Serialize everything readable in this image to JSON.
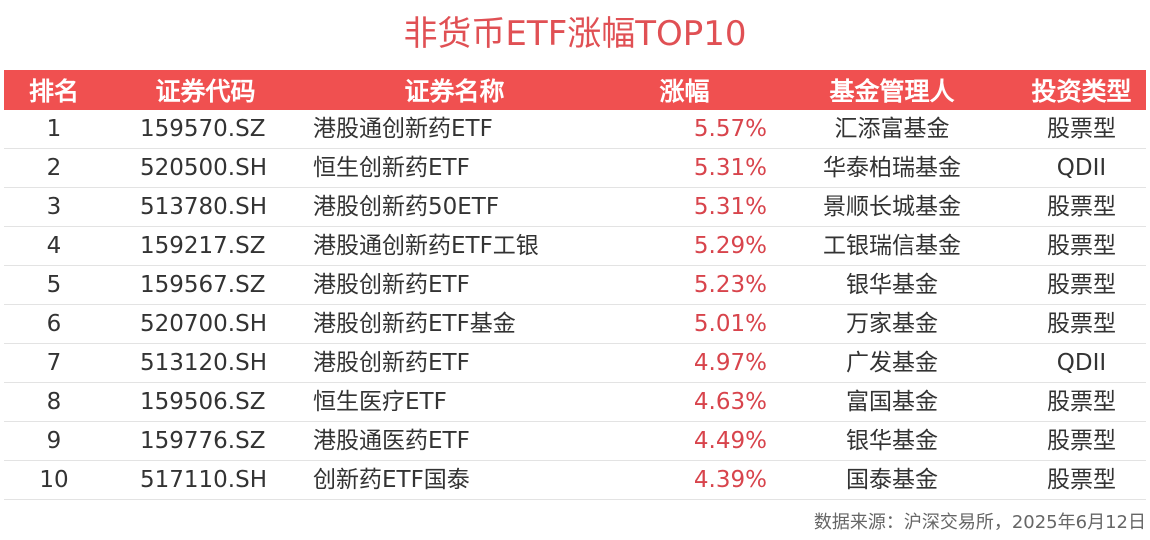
{
  "chart_data": {
    "type": "table",
    "title": "非货币ETF涨幅TOP10",
    "columns": [
      "排名",
      "证券代码",
      "证券名称",
      "涨幅",
      "基金管理人",
      "投资类型"
    ],
    "rows": [
      {
        "rank": "1",
        "code": "159570.SZ",
        "name": "港股通创新药ETF",
        "change": "5.57%",
        "manager": "汇添富基金",
        "type": "股票型"
      },
      {
        "rank": "2",
        "code": "520500.SH",
        "name": "恒生创新药ETF",
        "change": "5.31%",
        "manager": "华泰柏瑞基金",
        "type": "QDII"
      },
      {
        "rank": "3",
        "code": "513780.SH",
        "name": "港股创新药50ETF",
        "change": "5.31%",
        "manager": "景顺长城基金",
        "type": "股票型"
      },
      {
        "rank": "4",
        "code": "159217.SZ",
        "name": "港股通创新药ETF工银",
        "change": "5.29%",
        "manager": "工银瑞信基金",
        "type": "股票型"
      },
      {
        "rank": "5",
        "code": "159567.SZ",
        "name": "港股创新药ETF",
        "change": "5.23%",
        "manager": "银华基金",
        "type": "股票型"
      },
      {
        "rank": "6",
        "code": "520700.SH",
        "name": "港股创新药ETF基金",
        "change": "5.01%",
        "manager": "万家基金",
        "type": "股票型"
      },
      {
        "rank": "7",
        "code": "513120.SH",
        "name": "港股创新药ETF",
        "change": "4.97%",
        "manager": "广发基金",
        "type": "QDII"
      },
      {
        "rank": "8",
        "code": "159506.SZ",
        "name": "恒生医疗ETF",
        "change": "4.63%",
        "manager": "富国基金",
        "type": "股票型"
      },
      {
        "rank": "9",
        "code": "159776.SZ",
        "name": "港股通医药ETF",
        "change": "4.49%",
        "manager": "银华基金",
        "type": "股票型"
      },
      {
        "rank": "10",
        "code": "517110.SH",
        "name": "创新药ETF国泰",
        "change": "4.39%",
        "manager": "国泰基金",
        "type": "股票型"
      }
    ],
    "source": "数据来源：沪深交易所，2025年6月12日"
  },
  "colors": {
    "header_bg": "#f05050",
    "title": "#e05054",
    "change_text": "#d8444c"
  }
}
